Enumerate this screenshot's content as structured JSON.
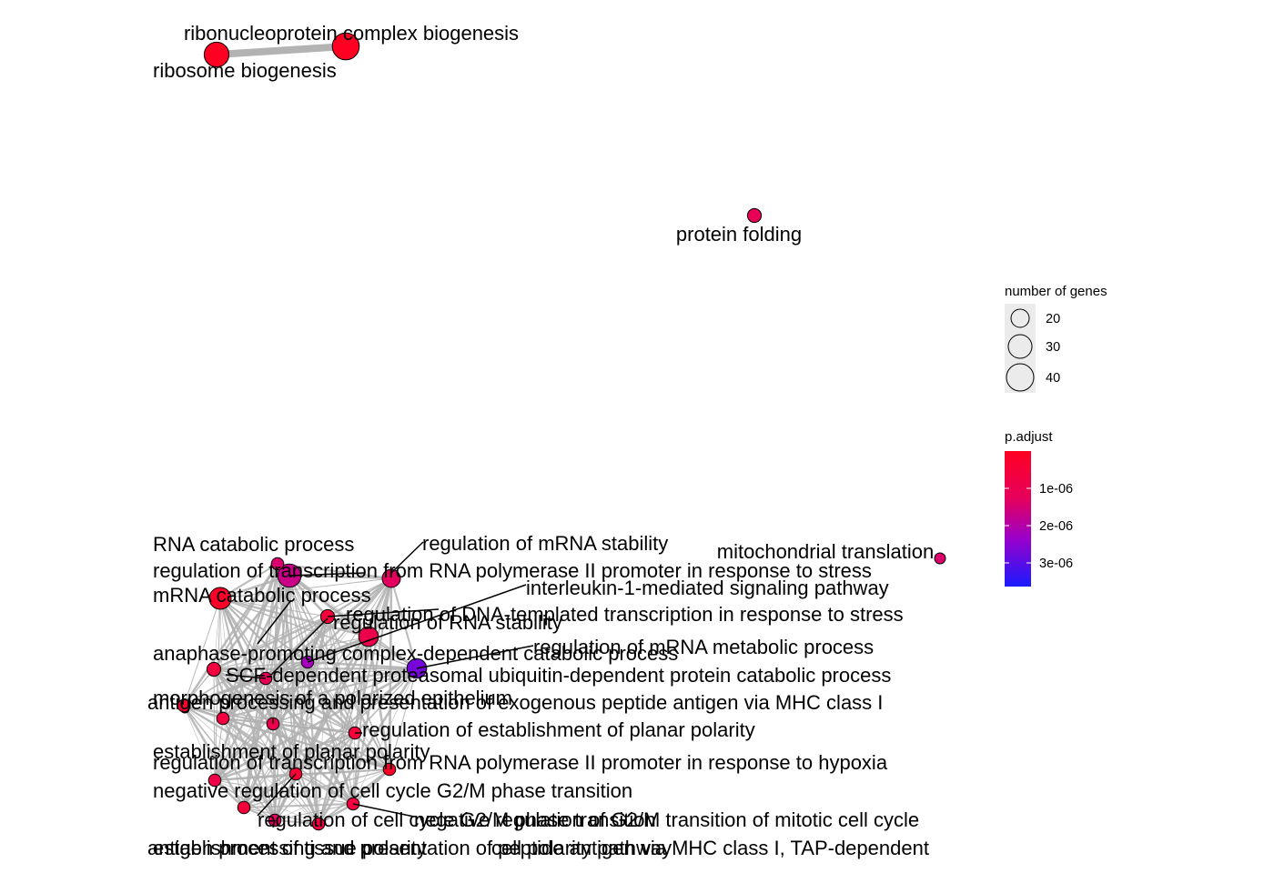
{
  "chart_data": {
    "type": "network",
    "nodes": [
      {
        "label": "ribonucleoprotein complex biogenesis",
        "genes": 40,
        "padj": 5e-07
      },
      {
        "label": "ribosome biogenesis",
        "genes": 37,
        "padj": 5e-07
      },
      {
        "label": "protein folding",
        "genes": 22,
        "padj": 1.4e-06
      },
      {
        "label": "mitochondrial translation",
        "genes": 18,
        "padj": 1.6e-06
      },
      {
        "label": "RNA catabolic process",
        "genes": 35,
        "padj": 1.8e-06
      },
      {
        "label": "regulation of mRNA stability",
        "genes": 28,
        "padj": 1.5e-06
      },
      {
        "label": "regulation of transcription from RNA polymerase II promoter in response to stress",
        "genes": 20,
        "padj": 1.6e-06
      },
      {
        "label": "mRNA catabolic process",
        "genes": 33,
        "padj": 6e-07
      },
      {
        "label": "interleukin-1-mediated signaling pathway",
        "genes": 20,
        "padj": 2.2e-06
      },
      {
        "label": "regulation of DNA-templated transcription in response to stress",
        "genes": 22,
        "padj": 9e-07
      },
      {
        "label": "regulation of RNA stability",
        "genes": 30,
        "padj": 1.2e-06
      },
      {
        "label": "regulation of mRNA metabolic process",
        "genes": 30,
        "padj": 2.6e-06
      },
      {
        "label": "anaphase-promoting complex-dependent catabolic process",
        "genes": 22,
        "padj": 1e-06
      },
      {
        "label": "SCF-dependent proteasomal ubiquitin-dependent protein catabolic process",
        "genes": 20,
        "padj": 1.4e-06
      },
      {
        "label": "antigen processing and presentation of exogenous peptide antigen via MHC class I",
        "genes": 20,
        "padj": 7e-07
      },
      {
        "label": "morphogenesis of a polarized epithelium",
        "genes": 20,
        "padj": 1.2e-06
      },
      {
        "label": "regulation of establishment of planar polarity",
        "genes": 20,
        "padj": 9e-07
      },
      {
        "label": "establishment of planar polarity",
        "genes": 20,
        "padj": 1e-06
      },
      {
        "label": "regulation of transcription from RNA polymerase II promoter in response to hypoxia",
        "genes": 20,
        "padj": 6e-07
      },
      {
        "label": "negative regulation of cell cycle G2/M phase transition",
        "genes": 20,
        "padj": 1.1e-06
      },
      {
        "label": "regulation of cell cycle G2/M phase transition",
        "genes": 20,
        "padj": 8e-07
      },
      {
        "label": "negative regulation of G2/M transition of mitotic cell cycle",
        "genes": 20,
        "padj": 1e-06
      },
      {
        "label": "establishment of tissue polarity",
        "genes": 20,
        "padj": 9e-07
      },
      {
        "label": "cell polarity pathway",
        "genes": 20,
        "padj": 1.5e-06
      },
      {
        "label": "antigen processing and presentation of peptide antigen via MHC class I, TAP-dependent",
        "genes": 20,
        "padj": 1e-06
      }
    ],
    "legend_size": {
      "title": "number of genes",
      "items": [
        20,
        30,
        40
      ]
    },
    "legend_color": {
      "title": "p.adjust",
      "ticks": [
        "1e-06",
        "2e-06",
        "3e-06"
      ],
      "low_color": "#ff0000",
      "mid_color": "#9900cc",
      "high_color": "#0000ff"
    },
    "grid": false,
    "legend_position": "right"
  }
}
